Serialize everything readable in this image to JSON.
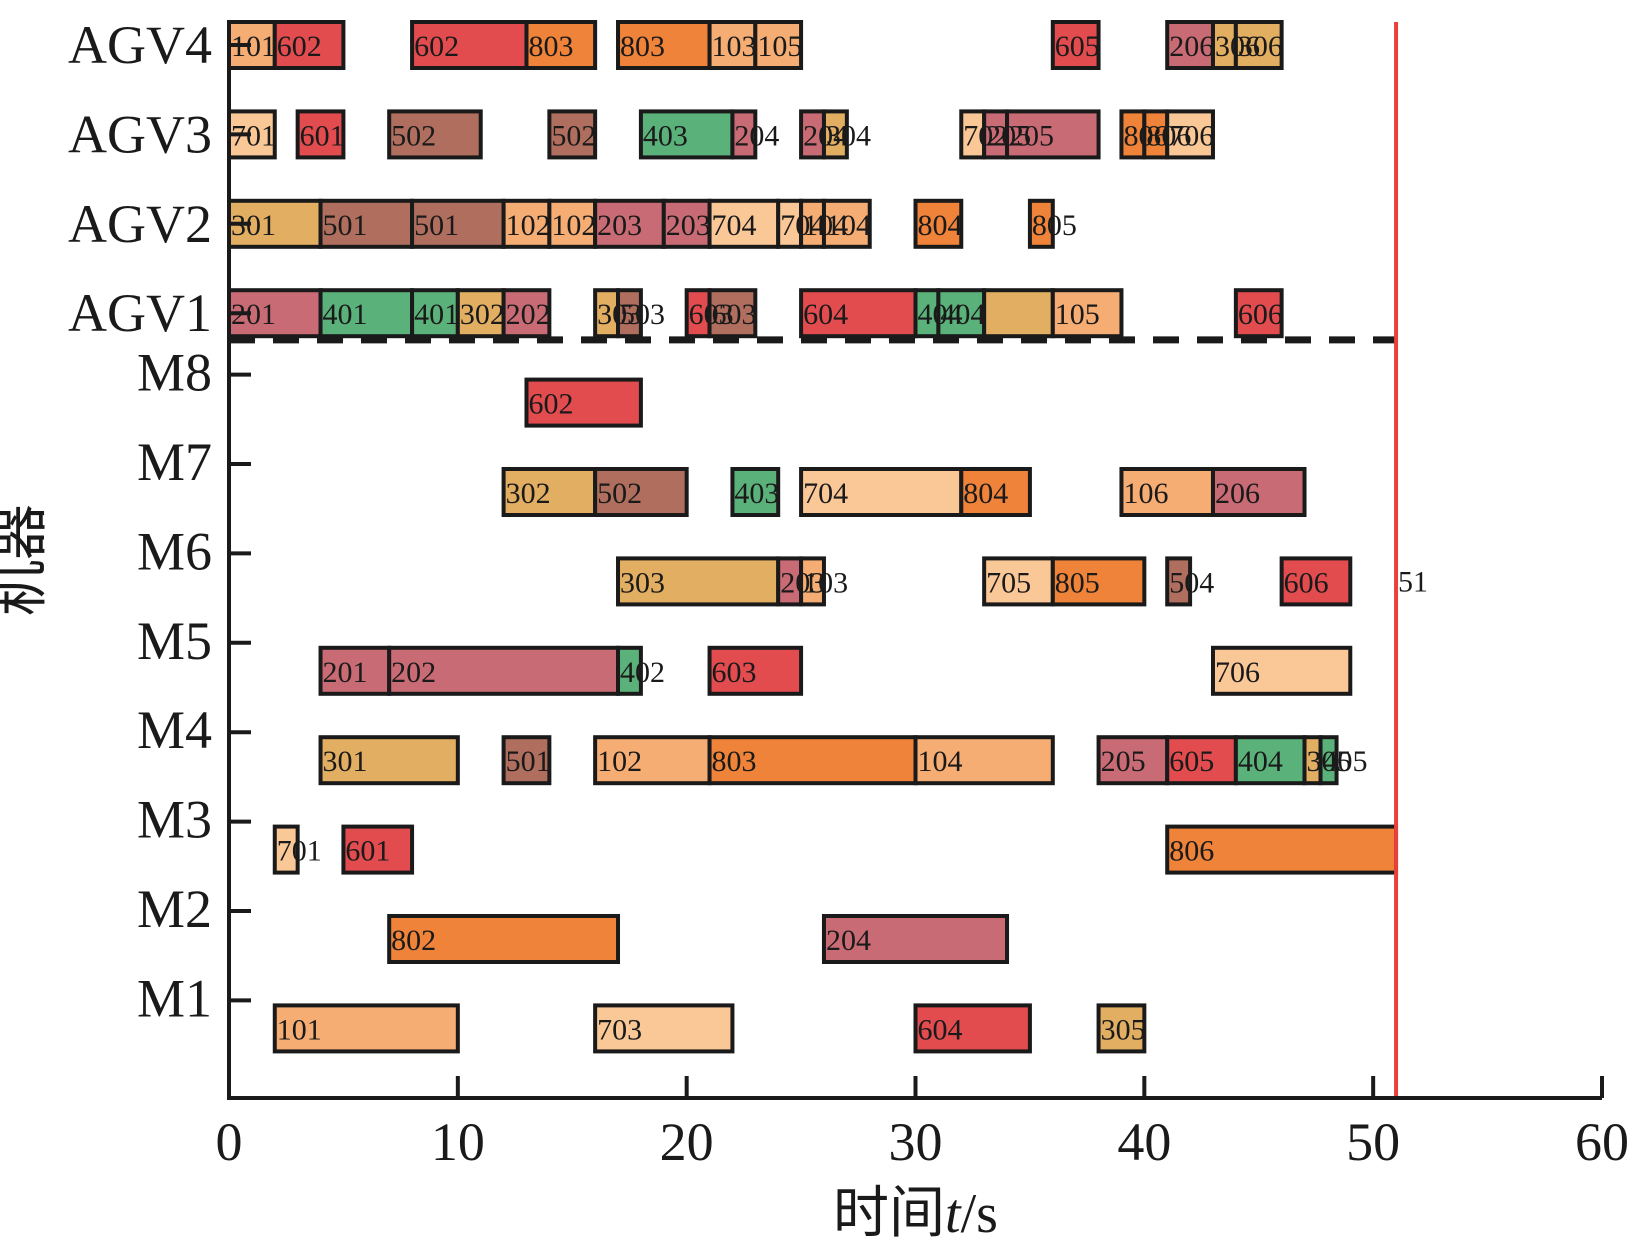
{
  "chart_data": {
    "type": "gantt",
    "title": "",
    "xlabel": "时间t/s",
    "xlabel_parts": [
      "时间",
      "t",
      "/s"
    ],
    "ylabel": "机器",
    "xlim": [
      0,
      60
    ],
    "xticks": [
      0,
      10,
      20,
      30,
      40,
      50,
      60
    ],
    "rows": [
      "AGV4",
      "AGV3",
      "AGV2",
      "AGV1",
      "M8",
      "M7",
      "M6",
      "M5",
      "M4",
      "M3",
      "M2",
      "M1"
    ],
    "separator_after_row": "AGV1",
    "makespan": 51,
    "makespan_label": "51",
    "colors": {
      "job1": "#F5AD73",
      "job2": "#C96B75",
      "job3": "#E2AE62",
      "job4": "#5BB17A",
      "job5": "#B06F5E",
      "job6": "#E24C4F",
      "job7": "#FAC797",
      "job8": "#EE8339",
      "makespan_line": "#E8413A",
      "separator": "#1a1a1a"
    },
    "tasks": [
      {
        "row": "AGV4",
        "start": 0,
        "end": 2,
        "label": "101",
        "job": 1
      },
      {
        "row": "AGV4",
        "start": 2,
        "end": 5,
        "label": "602",
        "job": 6
      },
      {
        "row": "AGV4",
        "start": 8,
        "end": 13,
        "label": "602",
        "job": 6
      },
      {
        "row": "AGV4",
        "start": 13,
        "end": 16,
        "label": "803",
        "job": 8
      },
      {
        "row": "AGV4",
        "start": 17,
        "end": 21,
        "label": "803",
        "job": 8
      },
      {
        "row": "AGV4",
        "start": 21,
        "end": 23,
        "label": "103",
        "job": 1
      },
      {
        "row": "AGV4",
        "start": 23,
        "end": 25,
        "label": "105",
        "job": 1
      },
      {
        "row": "AGV4",
        "start": 36,
        "end": 38,
        "label": "605",
        "job": 6
      },
      {
        "row": "AGV4",
        "start": 41,
        "end": 43,
        "label": "206",
        "job": 2
      },
      {
        "row": "AGV4",
        "start": 43,
        "end": 44,
        "label": "306",
        "job": 3
      },
      {
        "row": "AGV4",
        "start": 44,
        "end": 46,
        "label": "306",
        "job": 3
      },
      {
        "row": "AGV3",
        "start": 0,
        "end": 2,
        "label": "701",
        "job": 7
      },
      {
        "row": "AGV3",
        "start": 3,
        "end": 5,
        "label": "601",
        "job": 6
      },
      {
        "row": "AGV3",
        "start": 7,
        "end": 11,
        "label": "502",
        "job": 5
      },
      {
        "row": "AGV3",
        "start": 14,
        "end": 16,
        "label": "502",
        "job": 5
      },
      {
        "row": "AGV3",
        "start": 18,
        "end": 22,
        "label": "403",
        "job": 4
      },
      {
        "row": "AGV3",
        "start": 22,
        "end": 23,
        "label": "204",
        "job": 2
      },
      {
        "row": "AGV3",
        "start": 25,
        "end": 26,
        "label": "204",
        "job": 2
      },
      {
        "row": "AGV3",
        "start": 26,
        "end": 27,
        "label": "304",
        "job": 3
      },
      {
        "row": "AGV3",
        "start": 32,
        "end": 33,
        "label": "702",
        "job": 7
      },
      {
        "row": "AGV3",
        "start": 33,
        "end": 34,
        "label": "205",
        "job": 2
      },
      {
        "row": "AGV3",
        "start": 34,
        "end": 38,
        "label": "205",
        "job": 2
      },
      {
        "row": "AGV3",
        "start": 39,
        "end": 40,
        "label": "806",
        "job": 8
      },
      {
        "row": "AGV3",
        "start": 40,
        "end": 41,
        "label": "806",
        "job": 8
      },
      {
        "row": "AGV3",
        "start": 41,
        "end": 43,
        "label": "706",
        "job": 7
      },
      {
        "row": "AGV2",
        "start": 0,
        "end": 4,
        "label": "301",
        "job": 3
      },
      {
        "row": "AGV2",
        "start": 4,
        "end": 8,
        "label": "501",
        "job": 5
      },
      {
        "row": "AGV2",
        "start": 8,
        "end": 12,
        "label": "501",
        "job": 5
      },
      {
        "row": "AGV2",
        "start": 12,
        "end": 14,
        "label": "102",
        "job": 1
      },
      {
        "row": "AGV2",
        "start": 14,
        "end": 16,
        "label": "102",
        "job": 1
      },
      {
        "row": "AGV2",
        "start": 16,
        "end": 19,
        "label": "203",
        "job": 2
      },
      {
        "row": "AGV2",
        "start": 19,
        "end": 21,
        "label": "203",
        "job": 2
      },
      {
        "row": "AGV2",
        "start": 21,
        "end": 24,
        "label": "704",
        "job": 7
      },
      {
        "row": "AGV2",
        "start": 24,
        "end": 25,
        "label": "704",
        "job": 7
      },
      {
        "row": "AGV2",
        "start": 25,
        "end": 26,
        "label": "104",
        "job": 1
      },
      {
        "row": "AGV2",
        "start": 26,
        "end": 28,
        "label": "104",
        "job": 1
      },
      {
        "row": "AGV2",
        "start": 30,
        "end": 32,
        "label": "804",
        "job": 8
      },
      {
        "row": "AGV2",
        "start": 35,
        "end": 36,
        "label": "805",
        "job": 8
      },
      {
        "row": "AGV1",
        "start": 0,
        "end": 4,
        "label": "201",
        "job": 2
      },
      {
        "row": "AGV1",
        "start": 4,
        "end": 8,
        "label": "401",
        "job": 4
      },
      {
        "row": "AGV1",
        "start": 8,
        "end": 10,
        "label": "401",
        "job": 4
      },
      {
        "row": "AGV1",
        "start": 10,
        "end": 12,
        "label": "302",
        "job": 3
      },
      {
        "row": "AGV1",
        "start": 12,
        "end": 14,
        "label": "202",
        "job": 2
      },
      {
        "row": "AGV1",
        "start": 16,
        "end": 17,
        "label": "303",
        "job": 3
      },
      {
        "row": "AGV1",
        "start": 17,
        "end": 18,
        "label": "503",
        "job": 5
      },
      {
        "row": "AGV1",
        "start": 20,
        "end": 21,
        "label": "603",
        "job": 6
      },
      {
        "row": "AGV1",
        "start": 21,
        "end": 23,
        "label": "603",
        "job": 5
      },
      {
        "row": "AGV1",
        "start": 25,
        "end": 30,
        "label": "604",
        "job": 6
      },
      {
        "row": "AGV1",
        "start": 30,
        "end": 31,
        "label": "404",
        "job": 4
      },
      {
        "row": "AGV1",
        "start": 31,
        "end": 33,
        "label": "404",
        "job": 4
      },
      {
        "row": "AGV1",
        "start": 33,
        "end": 36,
        "label": "",
        "job": 3
      },
      {
        "row": "AGV1",
        "start": 36,
        "end": 39,
        "label": "105",
        "job": 1
      },
      {
        "row": "AGV1",
        "start": 44,
        "end": 46,
        "label": "606",
        "job": 6
      },
      {
        "row": "M8",
        "start": 13,
        "end": 18,
        "label": "602",
        "job": 6
      },
      {
        "row": "M7",
        "start": 12,
        "end": 16,
        "label": "302",
        "job": 3
      },
      {
        "row": "M7",
        "start": 16,
        "end": 20,
        "label": "502",
        "job": 5
      },
      {
        "row": "M7",
        "start": 22,
        "end": 24,
        "label": "403",
        "job": 4
      },
      {
        "row": "M7",
        "start": 25,
        "end": 32,
        "label": "704",
        "job": 7
      },
      {
        "row": "M7",
        "start": 32,
        "end": 35,
        "label": "804",
        "job": 8
      },
      {
        "row": "M7",
        "start": 39,
        "end": 43,
        "label": "106",
        "job": 1
      },
      {
        "row": "M7",
        "start": 43,
        "end": 47,
        "label": "206",
        "job": 2
      },
      {
        "row": "M6",
        "start": 17,
        "end": 24,
        "label": "303",
        "job": 3
      },
      {
        "row": "M6",
        "start": 24,
        "end": 25,
        "label": "203",
        "job": 2
      },
      {
        "row": "M6",
        "start": 25,
        "end": 26,
        "label": "103",
        "job": 1
      },
      {
        "row": "M6",
        "start": 33,
        "end": 36,
        "label": "705",
        "job": 7
      },
      {
        "row": "M6",
        "start": 36,
        "end": 40,
        "label": "805",
        "job": 8
      },
      {
        "row": "M6",
        "start": 41,
        "end": 42,
        "label": "504",
        "job": 5
      },
      {
        "row": "M6",
        "start": 46,
        "end": 49,
        "label": "606",
        "job": 6
      },
      {
        "row": "M5",
        "start": 4,
        "end": 7,
        "label": "201",
        "job": 2
      },
      {
        "row": "M5",
        "start": 7,
        "end": 17,
        "label": "202",
        "job": 2
      },
      {
        "row": "M5",
        "start": 17,
        "end": 18,
        "label": "402",
        "job": 4
      },
      {
        "row": "M5",
        "start": 21,
        "end": 25,
        "label": "603",
        "job": 6
      },
      {
        "row": "M5",
        "start": 43,
        "end": 49,
        "label": "706",
        "job": 7
      },
      {
        "row": "M4",
        "start": 4,
        "end": 10,
        "label": "301",
        "job": 3
      },
      {
        "row": "M4",
        "start": 12,
        "end": 14,
        "label": "501",
        "job": 5
      },
      {
        "row": "M4",
        "start": 16,
        "end": 21,
        "label": "102",
        "job": 1
      },
      {
        "row": "M4",
        "start": 21,
        "end": 30,
        "label": "803",
        "job": 8
      },
      {
        "row": "M4",
        "start": 30,
        "end": 36,
        "label": "104",
        "job": 1
      },
      {
        "row": "M4",
        "start": 38,
        "end": 41,
        "label": "205",
        "job": 2
      },
      {
        "row": "M4",
        "start": 41,
        "end": 44,
        "label": "605",
        "job": 6
      },
      {
        "row": "M4",
        "start": 44,
        "end": 47,
        "label": "404",
        "job": 4
      },
      {
        "row": "M4",
        "start": 47,
        "end": 47.7,
        "label": "305",
        "job": 3
      },
      {
        "row": "M4",
        "start": 47.7,
        "end": 48.4,
        "label": "405",
        "job": 4
      },
      {
        "row": "M3",
        "start": 2,
        "end": 3,
        "label": "701",
        "job": 7
      },
      {
        "row": "M3",
        "start": 5,
        "end": 8,
        "label": "601",
        "job": 6
      },
      {
        "row": "M3",
        "start": 41,
        "end": 51,
        "label": "806",
        "job": 8
      },
      {
        "row": "M2",
        "start": 7,
        "end": 17,
        "label": "802",
        "job": 8
      },
      {
        "row": "M2",
        "start": 26,
        "end": 34,
        "label": "204",
        "job": 2
      },
      {
        "row": "M1",
        "start": 2,
        "end": 10,
        "label": "101",
        "job": 1
      },
      {
        "row": "M1",
        "start": 16,
        "end": 22,
        "label": "703",
        "job": 7
      },
      {
        "row": "M1",
        "start": 30,
        "end": 35,
        "label": "604",
        "job": 6
      },
      {
        "row": "M1",
        "start": 38,
        "end": 40,
        "label": "305",
        "job": 3
      }
    ]
  }
}
